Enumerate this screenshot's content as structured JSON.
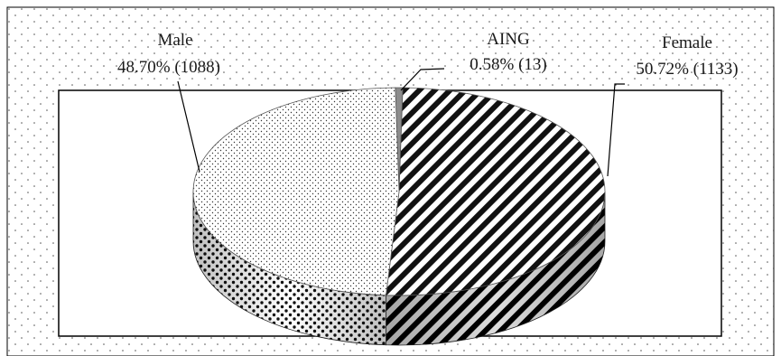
{
  "chart_data": {
    "type": "pie",
    "title": "",
    "slices": [
      {
        "name": "Male",
        "percent": 48.7,
        "count": 1088,
        "pattern": "dots"
      },
      {
        "name": "AING",
        "percent": 0.58,
        "count": 13,
        "pattern": "grey"
      },
      {
        "name": "Female",
        "percent": 50.72,
        "count": 1133,
        "pattern": "diagonal-stripes"
      }
    ],
    "labels": [
      {
        "name": "Male",
        "value_text": "48.70% (1088)"
      },
      {
        "name": "AING",
        "value_text": "0.58% (13)"
      },
      {
        "name": "Female",
        "value_text": "50.72% (1133)"
      }
    ],
    "style": "3d-pie",
    "legend": "none",
    "grid": false
  },
  "colors": {
    "background": "#ffffff",
    "ink": "#1a1a1a",
    "border": "#000000",
    "aing_slice": "#8c8c8c"
  }
}
